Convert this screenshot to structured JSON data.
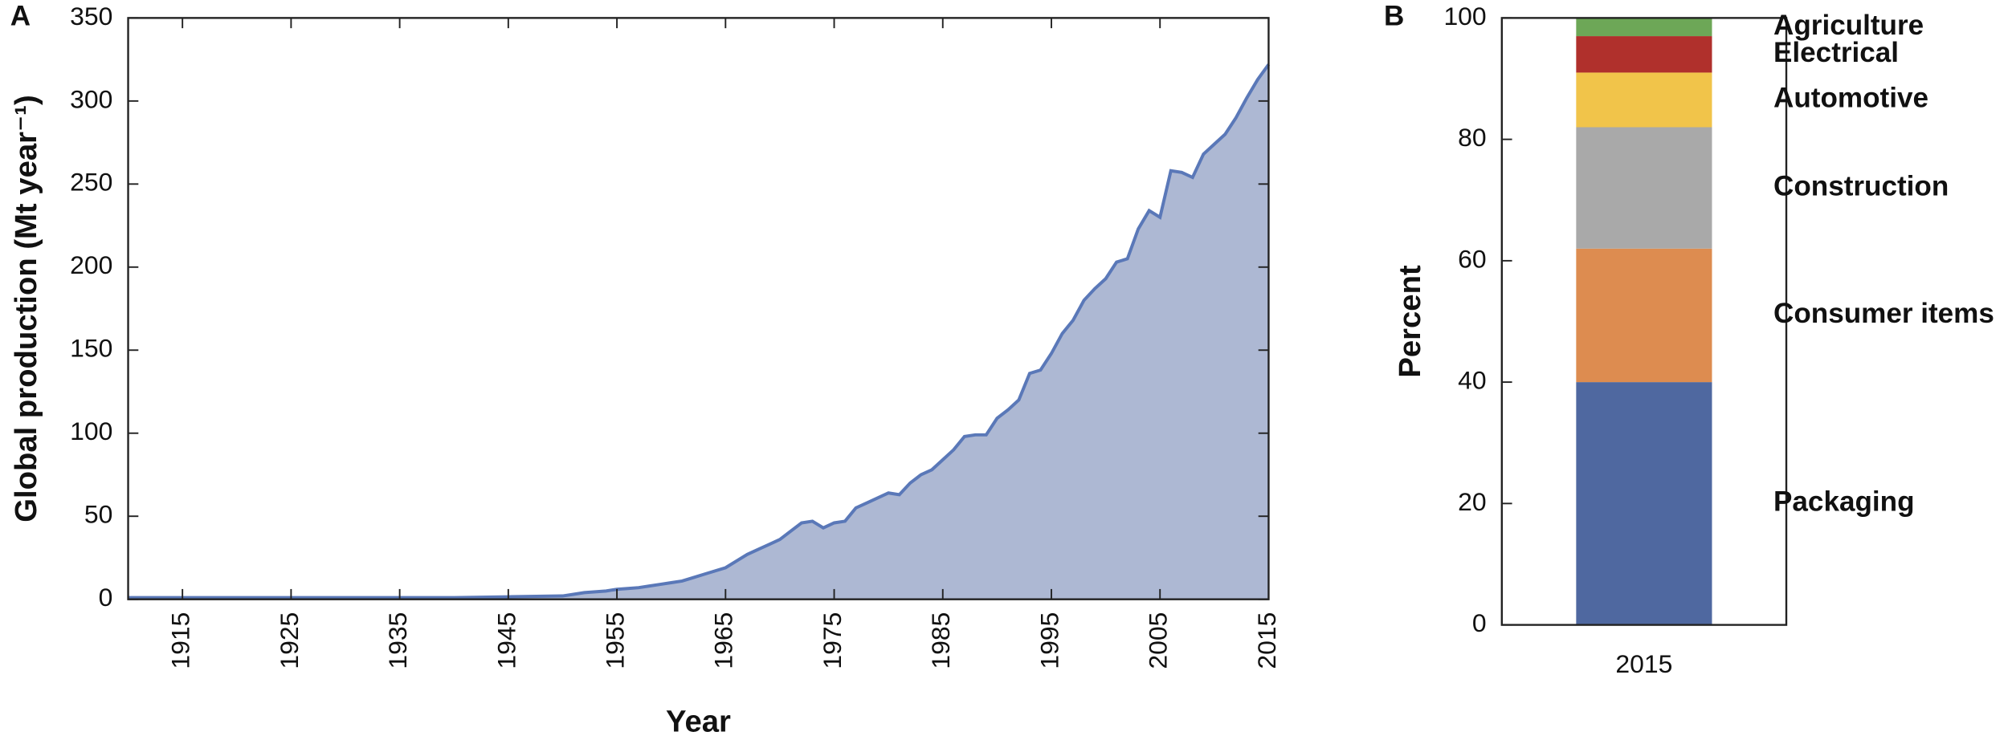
{
  "chart_data": [
    {
      "type": "area",
      "panel_label": "A",
      "xlabel": "Year",
      "ylabel": "Global production (Mt year⁻¹)",
      "x": [
        1910,
        1915,
        1920,
        1925,
        1930,
        1935,
        1940,
        1945,
        1950,
        1951,
        1952,
        1953,
        1954,
        1955,
        1956,
        1957,
        1958,
        1959,
        1960,
        1961,
        1962,
        1963,
        1964,
        1965,
        1966,
        1967,
        1968,
        1969,
        1970,
        1971,
        1972,
        1973,
        1974,
        1975,
        1976,
        1977,
        1978,
        1979,
        1980,
        1981,
        1982,
        1983,
        1984,
        1985,
        1986,
        1987,
        1988,
        1989,
        1990,
        1991,
        1992,
        1993,
        1994,
        1995,
        1996,
        1997,
        1998,
        1999,
        2000,
        2001,
        2002,
        2003,
        2004,
        2005,
        2006,
        2007,
        2008,
        2009,
        2010,
        2011,
        2012,
        2013,
        2014,
        2015
      ],
      "values": [
        1,
        1,
        1,
        1,
        1,
        1,
        1,
        1.5,
        2,
        3,
        4,
        4.5,
        5,
        6,
        6.5,
        7,
        8,
        9,
        10,
        11,
        13,
        15,
        17,
        19,
        23,
        27,
        30,
        33,
        36,
        41,
        46,
        47,
        43,
        46,
        47,
        55,
        58,
        61,
        64,
        63,
        70,
        75,
        78,
        84,
        90,
        98,
        99,
        99,
        109,
        114,
        120,
        136,
        138,
        148,
        160,
        168,
        180,
        187,
        193,
        203,
        205,
        223,
        234,
        230,
        258,
        257,
        254,
        268,
        274,
        280,
        290,
        302,
        313,
        322
      ],
      "color": "#5a78b8",
      "fill_color": "#adb8d3",
      "xlim": [
        1910,
        2015
      ],
      "xticks": [
        1915,
        1925,
        1935,
        1945,
        1955,
        1965,
        1975,
        1985,
        1995,
        2005,
        2015
      ],
      "ylim": [
        0,
        350
      ],
      "yticks": [
        0,
        50,
        100,
        150,
        200,
        250,
        300,
        350
      ]
    },
    {
      "type": "bar",
      "stacked": true,
      "panel_label": "B",
      "ylabel": "Percent",
      "categories": [
        "2015"
      ],
      "series": [
        {
          "name": "Packaging",
          "color": "#4f68a0",
          "values": [
            40
          ]
        },
        {
          "name": "Consumer items",
          "color": "#dd8c50",
          "values": [
            22
          ]
        },
        {
          "name": "Construction",
          "color": "#a9a9a9",
          "values": [
            20
          ]
        },
        {
          "name": "Automotive",
          "color": "#f1c44a",
          "values": [
            9
          ]
        },
        {
          "name": "Electrical",
          "color": "#b0302c",
          "values": [
            6
          ]
        },
        {
          "name": "Agriculture",
          "color": "#6da757",
          "values": [
            3
          ]
        }
      ],
      "ylim": [
        0,
        100
      ],
      "yticks": [
        0,
        20,
        40,
        60,
        80,
        100
      ]
    }
  ]
}
